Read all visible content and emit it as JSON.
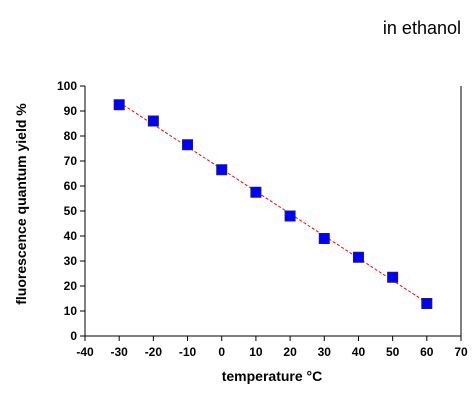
{
  "chart_data": {
    "type": "scatter",
    "annotation": "in ethanol",
    "xlabel": "temperature °C",
    "ylabel": "fluorescence quantum yield %",
    "xlim": [
      -40,
      70
    ],
    "ylim": [
      0,
      100
    ],
    "x_ticks": [
      -40,
      -30,
      -20,
      -10,
      0,
      10,
      20,
      30,
      40,
      50,
      60,
      70
    ],
    "y_ticks": [
      0,
      10,
      20,
      30,
      40,
      50,
      60,
      70,
      80,
      90,
      100
    ],
    "grid": false,
    "series": [
      {
        "points": [
          {
            "x": -30,
            "y": 92.5
          },
          {
            "x": -20,
            "y": 86
          },
          {
            "x": -10,
            "y": 76.5
          },
          {
            "x": 0,
            "y": 66.5
          },
          {
            "x": 10,
            "y": 57.5
          },
          {
            "x": 20,
            "y": 48
          },
          {
            "x": 30,
            "y": 39
          },
          {
            "x": 40,
            "y": 31.5
          },
          {
            "x": 50,
            "y": 23.5
          },
          {
            "x": 60,
            "y": 13
          }
        ],
        "marker_color": "#0000ff",
        "marker_edge_color": "#1a1a80",
        "fit_line_color": "#ff0000"
      }
    ]
  }
}
